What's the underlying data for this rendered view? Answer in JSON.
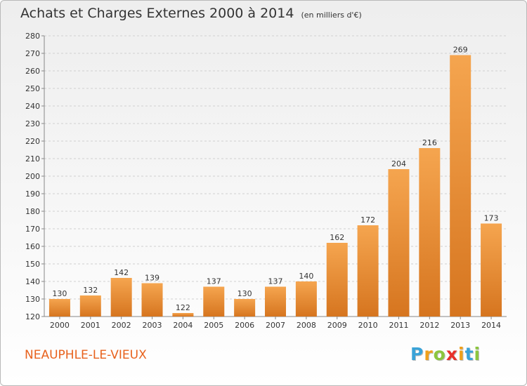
{
  "header": {
    "title": "Achats et Charges Externes 2000 à 2014",
    "subtitle": "(en milliers d'€)"
  },
  "footer": {
    "commune": "NEAUPHLE-LE-VIEUX",
    "logo_letters": [
      "P",
      "r",
      "o",
      "x",
      "i",
      "t",
      "i"
    ],
    "logo_colors": [
      "#3aa3d8",
      "#f0a01a",
      "#8cc63e",
      "#e8302a",
      "#f0a01a",
      "#3aa3d8",
      "#8cc63e"
    ]
  },
  "chart_data": {
    "type": "bar",
    "categories": [
      "2000",
      "2001",
      "2002",
      "2003",
      "2004",
      "2005",
      "2006",
      "2007",
      "2008",
      "2009",
      "2010",
      "2011",
      "2012",
      "2013",
      "2014"
    ],
    "values": [
      130,
      132,
      142,
      139,
      122,
      137,
      130,
      137,
      140,
      162,
      172,
      204,
      216,
      269,
      173
    ],
    "title": "Achats et Charges Externes 2000 à 2014",
    "subtitle": "(en milliers d'€)",
    "ylim": [
      120,
      280
    ],
    "yticks": [
      120,
      130,
      140,
      150,
      160,
      170,
      180,
      190,
      200,
      210,
      220,
      230,
      240,
      250,
      260,
      270,
      280
    ],
    "grid": true,
    "bar_color_light": "#f5a54f",
    "bar_color_dark": "#d6751f",
    "grid_color": "#d0d0d0",
    "axis_color": "#888888"
  }
}
